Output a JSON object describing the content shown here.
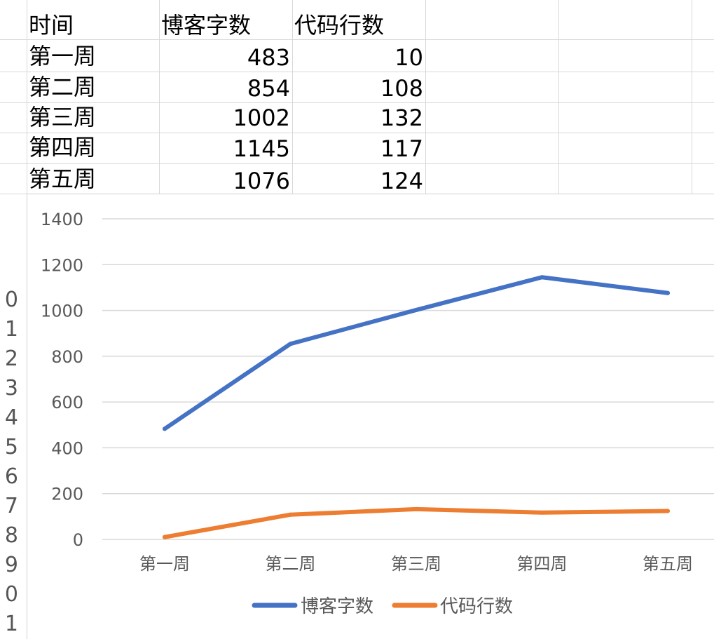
{
  "table": {
    "headers": [
      "时间",
      "博客字数",
      "代码行数"
    ],
    "rows": [
      [
        "第一周",
        "483",
        "10"
      ],
      [
        "第二周",
        "854",
        "108"
      ],
      [
        "第三周",
        "1002",
        "132"
      ],
      [
        "第四周",
        "1145",
        "117"
      ],
      [
        "第五周",
        "1076",
        "124"
      ]
    ]
  },
  "row_numbers": [
    "0",
    "1",
    "2",
    "3",
    "4",
    "5",
    "6",
    "7",
    "8",
    "9",
    "0",
    "1"
  ],
  "chart_data": {
    "type": "line",
    "categories": [
      "第一周",
      "第二周",
      "第三周",
      "第四周",
      "第五周"
    ],
    "series": [
      {
        "name": "博客字数",
        "values": [
          483,
          854,
          1002,
          1145,
          1076
        ],
        "color": "#4472c4"
      },
      {
        "name": "代码行数",
        "values": [
          10,
          108,
          132,
          117,
          124
        ],
        "color": "#ed7d31"
      }
    ],
    "yticks": [
      "0",
      "200",
      "400",
      "600",
      "800",
      "1000",
      "1200",
      "1400"
    ],
    "ylim": [
      0,
      1400
    ],
    "grid": true,
    "legend": "bottom"
  }
}
